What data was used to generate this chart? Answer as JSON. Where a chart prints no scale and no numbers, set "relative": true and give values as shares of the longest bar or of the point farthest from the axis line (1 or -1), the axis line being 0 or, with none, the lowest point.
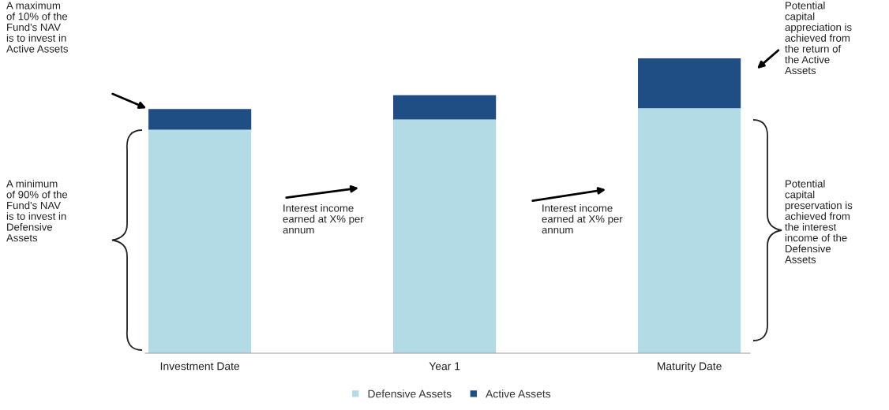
{
  "chart_data": {
    "type": "bar",
    "stacked": true,
    "relative": true,
    "categories": [
      "Investment Date",
      "Year 1",
      "Maturity Date"
    ],
    "series": [
      {
        "name": "Defensive Assets",
        "color": "#b3dbe6",
        "values": [
          0.758,
          0.793,
          0.831
        ]
      },
      {
        "name": "Active Assets",
        "color": "#1f4e85",
        "values": [
          0.07,
          0.082,
          0.169
        ]
      }
    ],
    "legend": "bottom",
    "grid": false,
    "annotations": [
      "A maximum\nof 10% of the\nFund's NAV\nis to invest in\nActive Assets",
      "A minimum\nof 90% of the\nFund's NAV\nis to invest in\nDefensive\nAssets",
      "Interest income\nearned at X% per\nannum",
      "Interest income\nearned at X% per\nannum",
      "Potential\ncapital\nappreciation is\nachieved from\nthe return of\nthe Active\nAssets",
      "Potential\ncapital\npreservation is\nachieved from\nthe interest\nincome of the\nDefensive\nAssets"
    ]
  }
}
